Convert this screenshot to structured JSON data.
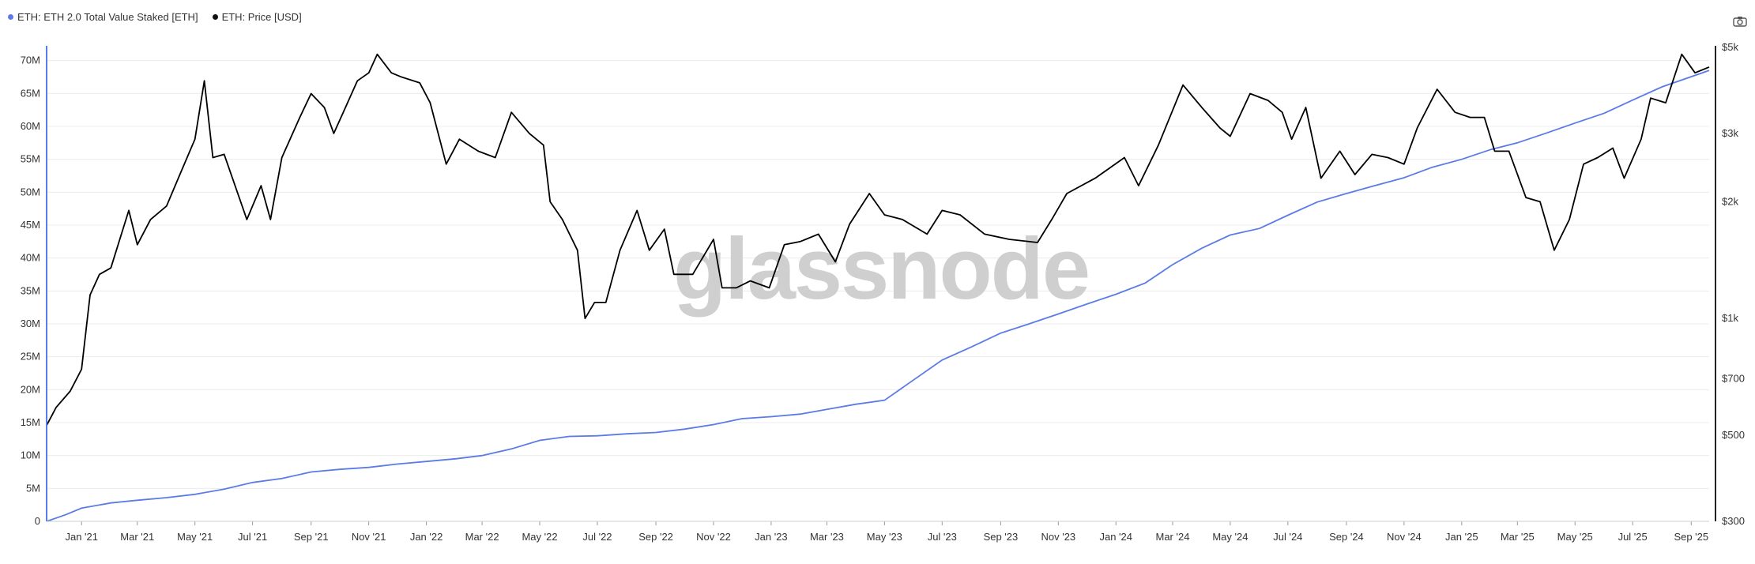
{
  "legend": {
    "series1": "ETH: ETH 2.0 Total Value Staked [ETH]",
    "series2": "ETH: Price [USD]"
  },
  "watermark": "glassnode",
  "icons": {
    "camera": "camera-icon"
  },
  "colors": {
    "staked": "#5b7be6",
    "price": "#000000",
    "grid": "#ececec",
    "axis": "#222222"
  },
  "chart_data": {
    "type": "line",
    "title": "",
    "x_ticks": [
      "Jan '21",
      "Mar '21",
      "May '21",
      "Jul '21",
      "Sep '21",
      "Nov '21",
      "Jan '22",
      "Mar '22",
      "May '22",
      "Jul '22",
      "Sep '22",
      "Nov '22",
      "Jan '23",
      "Mar '23",
      "May '23",
      "Jul '23",
      "Sep '23",
      "Nov '23",
      "Jan '24",
      "Mar '24",
      "May '24",
      "Jul '24",
      "Sep '24",
      "Nov '24",
      "Jan '25",
      "Mar '25",
      "May '25",
      "Jul '25",
      "Sep '25"
    ],
    "x_range": [
      "2020-11-25",
      "2025-09-20"
    ],
    "y_left": {
      "label": "",
      "range": [
        0,
        72000000
      ],
      "ticks": [
        "0",
        "5M",
        "10M",
        "15M",
        "20M",
        "25M",
        "30M",
        "35M",
        "40M",
        "45M",
        "50M",
        "55M",
        "60M",
        "65M",
        "70M"
      ],
      "tick_values": [
        0,
        5000000,
        10000000,
        15000000,
        20000000,
        25000000,
        30000000,
        35000000,
        40000000,
        45000000,
        50000000,
        55000000,
        60000000,
        65000000,
        70000000
      ]
    },
    "y_right": {
      "label": "",
      "scale": "log",
      "range": [
        300,
        5000
      ],
      "ticks": [
        "$300",
        "$500",
        "$700",
        "$1k",
        "$2k",
        "$3k",
        "$5k"
      ],
      "tick_values": [
        300,
        500,
        700,
        1000,
        2000,
        3000,
        5000
      ]
    },
    "series": [
      {
        "name": "ETH: ETH 2.0 Total Value Staked [ETH]",
        "axis": "left",
        "points": [
          [
            "2020-11-25",
            0
          ],
          [
            "2020-12-15",
            1000000
          ],
          [
            "2021-01-01",
            2000000
          ],
          [
            "2021-02-01",
            2800000
          ],
          [
            "2021-03-01",
            3200000
          ],
          [
            "2021-04-01",
            3600000
          ],
          [
            "2021-05-01",
            4100000
          ],
          [
            "2021-06-01",
            4900000
          ],
          [
            "2021-07-01",
            5900000
          ],
          [
            "2021-08-01",
            6500000
          ],
          [
            "2021-09-01",
            7500000
          ],
          [
            "2021-10-01",
            7900000
          ],
          [
            "2021-11-01",
            8200000
          ],
          [
            "2021-12-01",
            8700000
          ],
          [
            "2022-01-01",
            9100000
          ],
          [
            "2022-02-01",
            9500000
          ],
          [
            "2022-03-01",
            10000000
          ],
          [
            "2022-04-01",
            11000000
          ],
          [
            "2022-05-01",
            12300000
          ],
          [
            "2022-06-01",
            12900000
          ],
          [
            "2022-07-01",
            13000000
          ],
          [
            "2022-08-01",
            13300000
          ],
          [
            "2022-09-01",
            13500000
          ],
          [
            "2022-10-01",
            14000000
          ],
          [
            "2022-11-01",
            14700000
          ],
          [
            "2022-12-01",
            15600000
          ],
          [
            "2023-01-01",
            15900000
          ],
          [
            "2023-02-01",
            16300000
          ],
          [
            "2023-03-01",
            17000000
          ],
          [
            "2023-04-01",
            17800000
          ],
          [
            "2023-05-01",
            18400000
          ],
          [
            "2023-06-01",
            21500000
          ],
          [
            "2023-07-01",
            24500000
          ],
          [
            "2023-08-01",
            26500000
          ],
          [
            "2023-09-01",
            28600000
          ],
          [
            "2023-10-01",
            30000000
          ],
          [
            "2023-11-01",
            31500000
          ],
          [
            "2023-12-01",
            33000000
          ],
          [
            "2024-01-01",
            34500000
          ],
          [
            "2024-02-01",
            36200000
          ],
          [
            "2024-03-01",
            39000000
          ],
          [
            "2024-04-01",
            41500000
          ],
          [
            "2024-05-01",
            43500000
          ],
          [
            "2024-06-01",
            44500000
          ],
          [
            "2024-07-01",
            46500000
          ],
          [
            "2024-08-01",
            48500000
          ],
          [
            "2024-09-01",
            49800000
          ],
          [
            "2024-10-01",
            51000000
          ],
          [
            "2024-11-01",
            52200000
          ],
          [
            "2024-12-01",
            53800000
          ],
          [
            "2025-01-01",
            55000000
          ],
          [
            "2025-02-01",
            56500000
          ],
          [
            "2025-03-01",
            57500000
          ],
          [
            "2025-04-01",
            59000000
          ],
          [
            "2025-05-01",
            60500000
          ],
          [
            "2025-06-01",
            62000000
          ],
          [
            "2025-07-01",
            64000000
          ],
          [
            "2025-08-01",
            66000000
          ],
          [
            "2025-09-20",
            68500000
          ]
        ]
      },
      {
        "name": "ETH: Price [USD]",
        "axis": "right",
        "points": [
          [
            "2020-11-25",
            530
          ],
          [
            "2020-12-05",
            590
          ],
          [
            "2020-12-20",
            650
          ],
          [
            "2021-01-01",
            740
          ],
          [
            "2021-01-10",
            1150
          ],
          [
            "2021-01-20",
            1300
          ],
          [
            "2021-02-01",
            1350
          ],
          [
            "2021-02-20",
            1900
          ],
          [
            "2021-03-01",
            1550
          ],
          [
            "2021-03-15",
            1800
          ],
          [
            "2021-04-01",
            1950
          ],
          [
            "2021-04-15",
            2350
          ],
          [
            "2021-05-01",
            2900
          ],
          [
            "2021-05-11",
            4100
          ],
          [
            "2021-05-20",
            2600
          ],
          [
            "2021-06-01",
            2650
          ],
          [
            "2021-06-25",
            1800
          ],
          [
            "2021-07-10",
            2200
          ],
          [
            "2021-07-20",
            1800
          ],
          [
            "2021-08-01",
            2600
          ],
          [
            "2021-08-20",
            3300
          ],
          [
            "2021-09-01",
            3800
          ],
          [
            "2021-09-15",
            3500
          ],
          [
            "2021-09-25",
            3000
          ],
          [
            "2021-10-05",
            3400
          ],
          [
            "2021-10-20",
            4100
          ],
          [
            "2021-11-01",
            4300
          ],
          [
            "2021-11-10",
            4800
          ],
          [
            "2021-11-25",
            4300
          ],
          [
            "2021-12-05",
            4200
          ],
          [
            "2021-12-25",
            4050
          ],
          [
            "2022-01-05",
            3600
          ],
          [
            "2022-01-22",
            2500
          ],
          [
            "2022-02-05",
            2900
          ],
          [
            "2022-02-25",
            2700
          ],
          [
            "2022-03-15",
            2600
          ],
          [
            "2022-04-01",
            3400
          ],
          [
            "2022-04-20",
            3000
          ],
          [
            "2022-05-05",
            2800
          ],
          [
            "2022-05-12",
            2000
          ],
          [
            "2022-05-25",
            1800
          ],
          [
            "2022-06-10",
            1500
          ],
          [
            "2022-06-18",
            1000
          ],
          [
            "2022-06-28",
            1100
          ],
          [
            "2022-07-10",
            1100
          ],
          [
            "2022-07-25",
            1500
          ],
          [
            "2022-08-12",
            1900
          ],
          [
            "2022-08-25",
            1500
          ],
          [
            "2022-09-10",
            1700
          ],
          [
            "2022-09-20",
            1300
          ],
          [
            "2022-10-10",
            1300
          ],
          [
            "2022-11-01",
            1600
          ],
          [
            "2022-11-10",
            1200
          ],
          [
            "2022-11-25",
            1200
          ],
          [
            "2022-12-10",
            1250
          ],
          [
            "2022-12-30",
            1200
          ],
          [
            "2023-01-15",
            1550
          ],
          [
            "2023-02-01",
            1580
          ],
          [
            "2023-02-20",
            1650
          ],
          [
            "2023-03-10",
            1400
          ],
          [
            "2023-03-25",
            1750
          ],
          [
            "2023-04-15",
            2100
          ],
          [
            "2023-05-01",
            1850
          ],
          [
            "2023-05-20",
            1800
          ],
          [
            "2023-06-15",
            1650
          ],
          [
            "2023-07-01",
            1900
          ],
          [
            "2023-07-20",
            1850
          ],
          [
            "2023-08-15",
            1650
          ],
          [
            "2023-09-10",
            1600
          ],
          [
            "2023-10-10",
            1570
          ],
          [
            "2023-10-25",
            1800
          ],
          [
            "2023-11-10",
            2100
          ],
          [
            "2023-12-10",
            2300
          ],
          [
            "2024-01-10",
            2600
          ],
          [
            "2024-01-25",
            2200
          ],
          [
            "2024-02-15",
            2800
          ],
          [
            "2024-03-12",
            4000
          ],
          [
            "2024-04-01",
            3500
          ],
          [
            "2024-04-20",
            3100
          ],
          [
            "2024-05-01",
            2950
          ],
          [
            "2024-05-22",
            3800
          ],
          [
            "2024-06-10",
            3650
          ],
          [
            "2024-06-25",
            3400
          ],
          [
            "2024-07-05",
            2900
          ],
          [
            "2024-07-20",
            3500
          ],
          [
            "2024-08-05",
            2300
          ],
          [
            "2024-08-25",
            2700
          ],
          [
            "2024-09-10",
            2350
          ],
          [
            "2024-09-28",
            2650
          ],
          [
            "2024-10-15",
            2600
          ],
          [
            "2024-11-01",
            2500
          ],
          [
            "2024-11-15",
            3100
          ],
          [
            "2024-12-06",
            3900
          ],
          [
            "2024-12-25",
            3400
          ],
          [
            "2025-01-10",
            3300
          ],
          [
            "2025-01-25",
            3300
          ],
          [
            "2025-02-05",
            2700
          ],
          [
            "2025-02-20",
            2700
          ],
          [
            "2025-03-10",
            2050
          ],
          [
            "2025-03-25",
            2000
          ],
          [
            "2025-04-09",
            1500
          ],
          [
            "2025-04-25",
            1800
          ],
          [
            "2025-05-10",
            2500
          ],
          [
            "2025-05-25",
            2600
          ],
          [
            "2025-06-10",
            2750
          ],
          [
            "2025-06-22",
            2300
          ],
          [
            "2025-07-10",
            2900
          ],
          [
            "2025-07-20",
            3700
          ],
          [
            "2025-08-05",
            3600
          ],
          [
            "2025-08-22",
            4800
          ],
          [
            "2025-09-05",
            4300
          ],
          [
            "2025-09-20",
            4450
          ]
        ]
      }
    ]
  }
}
